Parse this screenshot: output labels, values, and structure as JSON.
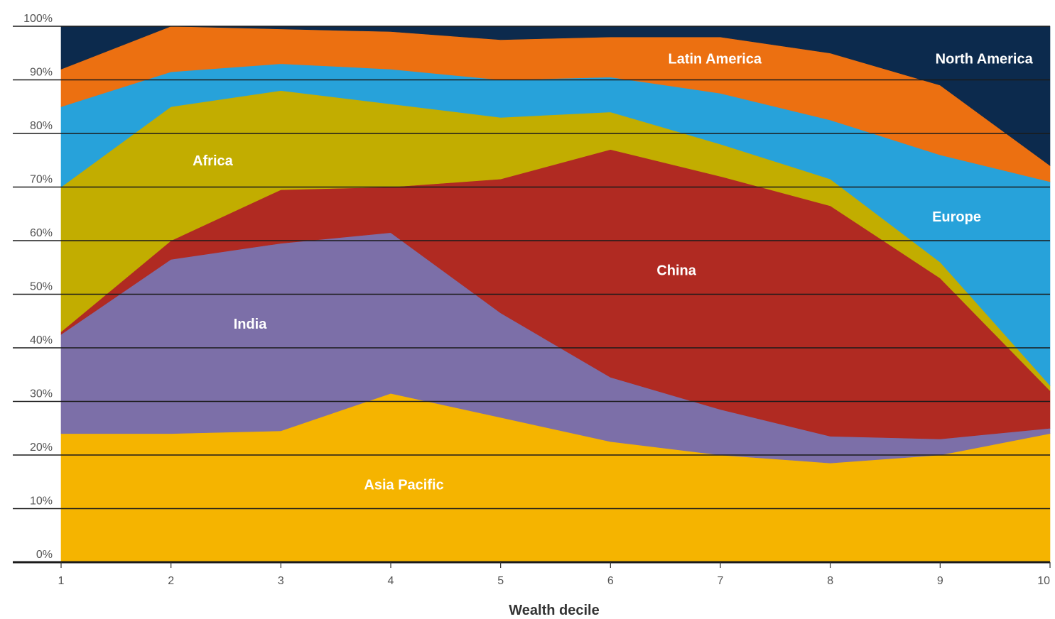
{
  "chart_data": {
    "type": "area",
    "stacked": true,
    "percent": true,
    "title": "",
    "xlabel": "Wealth decile",
    "ylabel": "",
    "x": [
      1,
      2,
      3,
      4,
      5,
      6,
      7,
      8,
      9,
      10
    ],
    "x_tick_labels": [
      "1",
      "2",
      "3",
      "4",
      "5",
      "6",
      "7",
      "8",
      "9",
      "10"
    ],
    "ylim": [
      0,
      100
    ],
    "y_ticks": [
      0,
      10,
      20,
      30,
      40,
      50,
      60,
      70,
      80,
      90,
      100
    ],
    "y_tick_labels": [
      "0%",
      "10%",
      "20%",
      "30%",
      "40%",
      "50%",
      "60%",
      "70%",
      "80%",
      "90%",
      "100%"
    ],
    "grid": true,
    "legend": "inline labels",
    "series": [
      {
        "name": "Asia-Pacific",
        "color": "#f5b400",
        "values": [
          24.0,
          24.0,
          24.5,
          31.5,
          27.0,
          22.5,
          20.0,
          18.5,
          20.0,
          24.0
        ]
      },
      {
        "name": "India",
        "color": "#7c6fa8",
        "values": [
          18.5,
          32.5,
          35.0,
          30.0,
          19.5,
          12.0,
          8.5,
          5.0,
          3.0,
          1.0
        ]
      },
      {
        "name": "China",
        "color": "#b02a22",
        "values": [
          0.5,
          3.5,
          10.0,
          8.5,
          25.0,
          42.5,
          43.5,
          43.0,
          30.0,
          7.0
        ]
      },
      {
        "name": "Africa",
        "color": "#c2ad00",
        "values": [
          27.0,
          25.0,
          18.5,
          15.5,
          11.5,
          7.0,
          6.0,
          5.0,
          3.0,
          1.0
        ]
      },
      {
        "name": "Europe",
        "color": "#27a2da",
        "values": [
          15.0,
          6.5,
          5.0,
          6.5,
          7.0,
          6.5,
          9.5,
          11.0,
          20.0,
          38.0
        ]
      },
      {
        "name": "Latin America",
        "color": "#ec7011",
        "values": [
          7.0,
          8.5,
          6.5,
          7.0,
          7.5,
          7.5,
          10.5,
          12.5,
          13.0,
          3.0
        ]
      },
      {
        "name": "North America",
        "color": "#0c2a4d",
        "values": [
          8.0,
          0.0,
          0.5,
          1.0,
          2.5,
          2.0,
          2.0,
          5.0,
          11.0,
          26.0
        ]
      }
    ],
    "annotations": [
      {
        "text": "North America",
        "series": "North America",
        "x": 9.4,
        "y": 94
      },
      {
        "text": "Latin America",
        "series": "Latin America",
        "x": 6.95,
        "y": 94
      },
      {
        "text": "Africa",
        "series": "Africa",
        "x": 2.38,
        "y": 75
      },
      {
        "text": "Europe",
        "series": "Europe",
        "x": 9.15,
        "y": 64.5
      },
      {
        "text": "China",
        "series": "China",
        "x": 6.6,
        "y": 54.5
      },
      {
        "text": "India",
        "series": "India",
        "x": 2.72,
        "y": 44.5
      },
      {
        "text": "Asia Pacific",
        "series": "Asia-Pacific",
        "x": 4.12,
        "y": 14.5
      }
    ]
  }
}
